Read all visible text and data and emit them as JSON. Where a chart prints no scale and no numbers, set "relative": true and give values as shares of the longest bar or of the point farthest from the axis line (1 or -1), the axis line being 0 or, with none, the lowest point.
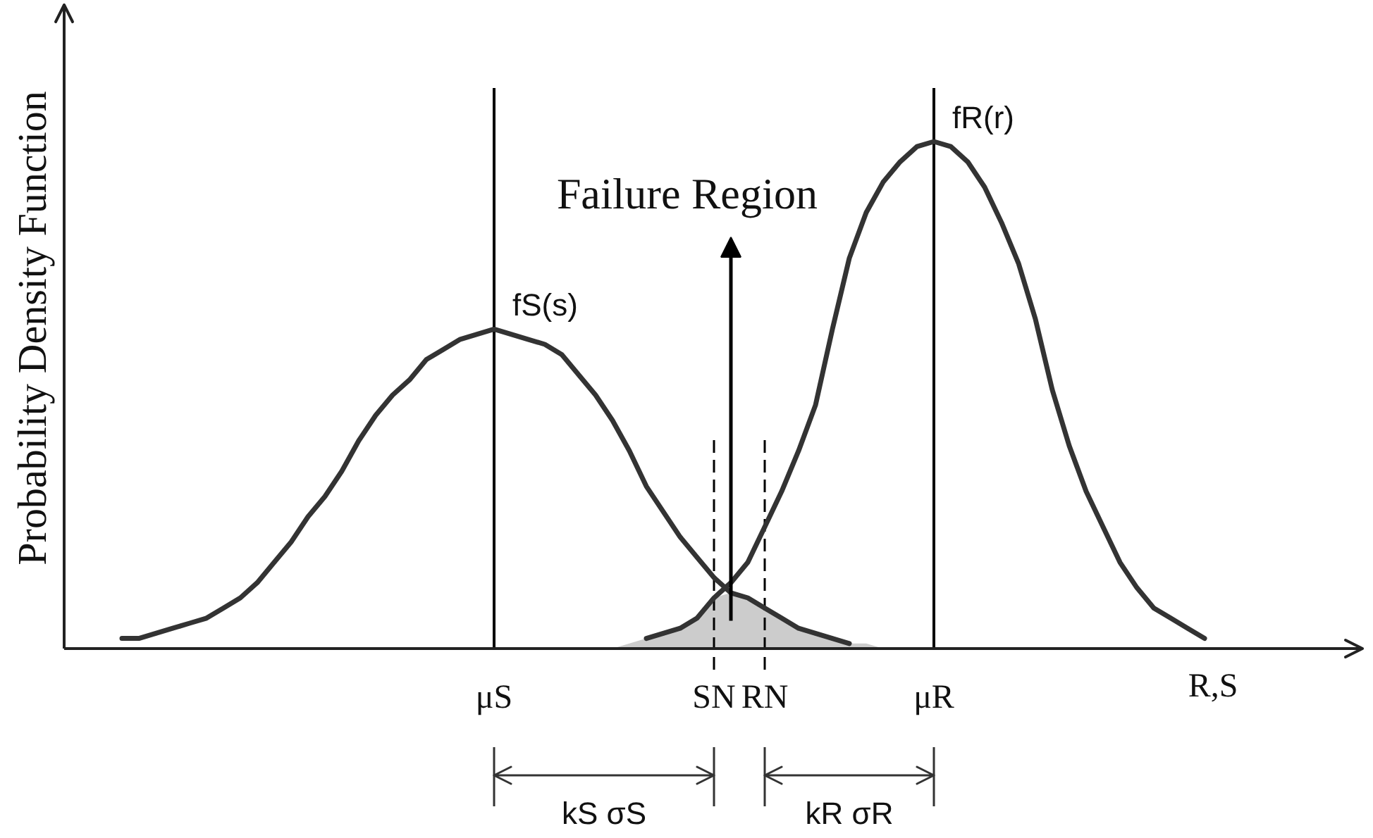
{
  "chart_data": {
    "type": "line",
    "relative": true,
    "ylabel": "Probability Density Function",
    "xlabel": "R,S",
    "categories": [
      null,
      null,
      null,
      null,
      null,
      null,
      null,
      null,
      null,
      null,
      null,
      null,
      null,
      null,
      null,
      null,
      null,
      null,
      null,
      null,
      null,
      null,
      "μS",
      null,
      null,
      null,
      null,
      null,
      null,
      null,
      null,
      null,
      null,
      null,
      null,
      "SN",
      null,
      null,
      "RN",
      null,
      null,
      null,
      null,
      null,
      null,
      null,
      null,
      null,
      "μR",
      null,
      null,
      null,
      null,
      null,
      null,
      null,
      null,
      null,
      null,
      null,
      null,
      null,
      null,
      null,
      null
    ],
    "series": [
      {
        "name": "fS(s)",
        "color": "#333333",
        "values": [
          0.02,
          0.02,
          0.03,
          0.04,
          0.05,
          0.06,
          0.08,
          0.1,
          0.13,
          0.17,
          0.21,
          0.26,
          0.3,
          0.35,
          0.41,
          0.46,
          0.5,
          0.53,
          0.57,
          0.59,
          0.61,
          0.62,
          0.63,
          0.62,
          0.61,
          0.6,
          0.58,
          0.54,
          0.5,
          0.45,
          0.39,
          0.32,
          0.27,
          0.22,
          0.18,
          0.14,
          0.11,
          0.1,
          0.08,
          0.06,
          0.04,
          0.03,
          0.02,
          0.01,
          null,
          null,
          null,
          null,
          null,
          null,
          null,
          null,
          null,
          null,
          null,
          null,
          null,
          null,
          null,
          null,
          null,
          null,
          null,
          null,
          null
        ]
      },
      {
        "name": "fR(r)",
        "color": "#333333",
        "values": [
          null,
          null,
          null,
          null,
          null,
          null,
          null,
          null,
          null,
          null,
          null,
          null,
          null,
          null,
          null,
          null,
          null,
          null,
          null,
          null,
          null,
          null,
          null,
          null,
          null,
          null,
          null,
          null,
          null,
          null,
          null,
          0.02,
          0.03,
          0.04,
          0.06,
          0.1,
          0.13,
          0.17,
          0.24,
          0.31,
          0.39,
          0.48,
          0.63,
          0.77,
          0.86,
          0.92,
          0.96,
          0.99,
          1.0,
          0.99,
          0.96,
          0.91,
          0.84,
          0.76,
          0.65,
          0.51,
          0.4,
          0.31,
          0.24,
          0.17,
          0.12,
          0.08,
          0.06,
          0.04,
          0.02
        ]
      },
      {
        "type": "area",
        "color": "#cccccc",
        "values": [
          null,
          null,
          null,
          null,
          null,
          null,
          null,
          null,
          null,
          null,
          null,
          null,
          null,
          null,
          null,
          null,
          null,
          null,
          null,
          null,
          null,
          null,
          null,
          null,
          null,
          null,
          null,
          null,
          null,
          0.0,
          0.01,
          0.02,
          0.03,
          0.04,
          0.06,
          0.1,
          0.11,
          0.1,
          0.08,
          0.06,
          0.04,
          0.03,
          0.02,
          0.01,
          0.01,
          0.0,
          null,
          null,
          null,
          null,
          null,
          null,
          null,
          null,
          null,
          null,
          null,
          null,
          null,
          null,
          null,
          null,
          null,
          null,
          null
        ]
      }
    ],
    "ref_lines": [
      {
        "axis": "x",
        "value": "μS",
        "color": "#000000",
        "line_style": "solid"
      },
      {
        "axis": "x",
        "value": "SN",
        "color": "#000000",
        "line_style": "dashed"
      },
      {
        "axis": "x",
        "value": "RN",
        "color": "#000000",
        "line_style": "dashed"
      },
      {
        "axis": "x",
        "value": "μR",
        "color": "#000000",
        "line_style": "solid"
      }
    ],
    "annotations": [
      "Failure Region",
      "kS σS",
      "kR σR"
    ]
  }
}
